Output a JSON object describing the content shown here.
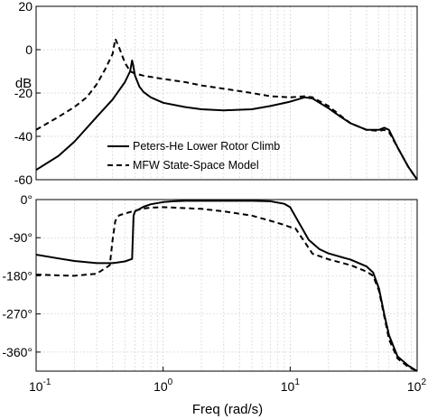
{
  "chart_data": [
    {
      "type": "line",
      "panel": "magnitude",
      "title": "",
      "xlabel": "",
      "ylabel": "dB",
      "xscale": "log",
      "xlim": [
        0.1,
        100
      ],
      "ylim": [
        -60,
        20
      ],
      "yticks": [
        20,
        0,
        -20,
        -40,
        -60
      ],
      "ytick_labels": [
        "20",
        "0",
        "-20",
        "-40",
        "-60"
      ],
      "grid": true,
      "legend": {
        "placement": "center-bottom"
      },
      "series": [
        {
          "name": "Peters-He Lower Rotor Climb",
          "style": "solid",
          "points": [
            [
              0.1,
              -55.5
            ],
            [
              0.15,
              -49
            ],
            [
              0.2,
              -42.5
            ],
            [
              0.3,
              -31
            ],
            [
              0.4,
              -23
            ],
            [
              0.5,
              -15
            ],
            [
              0.55,
              -10
            ],
            [
              0.57,
              -5
            ],
            [
              0.58,
              -7
            ],
            [
              0.6,
              -12
            ],
            [
              0.65,
              -17
            ],
            [
              0.7,
              -19.5
            ],
            [
              0.8,
              -22
            ],
            [
              1,
              -24.5
            ],
            [
              1.5,
              -26.5
            ],
            [
              2,
              -27.5
            ],
            [
              3,
              -28
            ],
            [
              5,
              -27.5
            ],
            [
              7,
              -26
            ],
            [
              10,
              -24
            ],
            [
              13,
              -22
            ],
            [
              15,
              -22.5
            ],
            [
              20,
              -27
            ],
            [
              25,
              -31
            ],
            [
              30,
              -34
            ],
            [
              40,
              -37
            ],
            [
              50,
              -37
            ],
            [
              55,
              -36
            ],
            [
              60,
              -37
            ],
            [
              70,
              -45
            ],
            [
              85,
              -54
            ],
            [
              100,
              -60
            ]
          ]
        },
        {
          "name": "MFW State-Space Model",
          "style": "dashed",
          "points": [
            [
              0.1,
              -37
            ],
            [
              0.15,
              -31
            ],
            [
              0.2,
              -26.5
            ],
            [
              0.25,
              -22
            ],
            [
              0.3,
              -16
            ],
            [
              0.35,
              -9
            ],
            [
              0.4,
              -2
            ],
            [
              0.42,
              5
            ],
            [
              0.45,
              1
            ],
            [
              0.5,
              -6
            ],
            [
              0.55,
              -10
            ],
            [
              0.6,
              -11
            ],
            [
              0.7,
              -12
            ],
            [
              1,
              -13.5
            ],
            [
              1.5,
              -15
            ],
            [
              2,
              -16.5
            ],
            [
              3,
              -18
            ],
            [
              5,
              -20
            ],
            [
              7,
              -21.5
            ],
            [
              10,
              -22
            ],
            [
              13,
              -21.5
            ],
            [
              15,
              -22
            ],
            [
              20,
              -26
            ],
            [
              25,
              -30.5
            ],
            [
              30,
              -34
            ],
            [
              40,
              -37
            ],
            [
              50,
              -37.5
            ],
            [
              55,
              -37
            ],
            [
              60,
              -38
            ],
            [
              70,
              -45
            ],
            [
              85,
              -54
            ],
            [
              100,
              -60
            ]
          ]
        }
      ]
    },
    {
      "type": "line",
      "panel": "phase",
      "title": "",
      "xlabel": "Freq (rad/s)",
      "ylabel": "",
      "xscale": "log",
      "xlim": [
        0.1,
        100
      ],
      "ylim": [
        -405,
        0
      ],
      "yticks": [
        0,
        -90,
        -180,
        -270,
        -360
      ],
      "ytick_labels": [
        "0°",
        "-90°",
        "-180°",
        "-270°",
        "-360°"
      ],
      "xticks": [
        0.1,
        1,
        10,
        100
      ],
      "xtick_labels": [
        {
          "base": "10",
          "exp": "-1"
        },
        {
          "base": "10",
          "exp": "0"
        },
        {
          "base": "10",
          "exp": "1"
        },
        {
          "base": "10",
          "exp": "2"
        }
      ],
      "grid": true,
      "series": [
        {
          "name": "Peters-He Lower Rotor Climb",
          "style": "solid",
          "points": [
            [
              0.1,
              -130
            ],
            [
              0.15,
              -139
            ],
            [
              0.2,
              -145
            ],
            [
              0.3,
              -150
            ],
            [
              0.4,
              -150
            ],
            [
              0.5,
              -146
            ],
            [
              0.57,
              -140
            ],
            [
              0.585,
              -38
            ],
            [
              0.6,
              -28
            ],
            [
              0.7,
              -17
            ],
            [
              0.8,
              -11
            ],
            [
              1,
              -6
            ],
            [
              1.2,
              -4
            ],
            [
              1.5,
              -3
            ],
            [
              2,
              -3
            ],
            [
              3,
              -3
            ],
            [
              5,
              -3
            ],
            [
              7,
              -4
            ],
            [
              9,
              -10
            ],
            [
              10,
              -18
            ],
            [
              12,
              -60
            ],
            [
              14,
              -95
            ],
            [
              17,
              -117
            ],
            [
              20,
              -127
            ],
            [
              30,
              -142
            ],
            [
              40,
              -158
            ],
            [
              45,
              -172
            ],
            [
              50,
              -210
            ],
            [
              55,
              -270
            ],
            [
              60,
              -320
            ],
            [
              70,
              -370
            ],
            [
              85,
              -392
            ],
            [
              100,
              -405
            ]
          ]
        },
        {
          "name": "MFW State-Space Model",
          "style": "dashed",
          "points": [
            [
              0.1,
              -177
            ],
            [
              0.15,
              -179
            ],
            [
              0.2,
              -180
            ],
            [
              0.3,
              -175
            ],
            [
              0.38,
              -155
            ],
            [
              0.4,
              -95
            ],
            [
              0.42,
              -50
            ],
            [
              0.45,
              -37
            ],
            [
              0.5,
              -33
            ],
            [
              0.6,
              -26
            ],
            [
              0.7,
              -21
            ],
            [
              0.8,
              -19
            ],
            [
              1,
              -18
            ],
            [
              2,
              -22
            ],
            [
              3,
              -28
            ],
            [
              5,
              -38
            ],
            [
              7,
              -50
            ],
            [
              9,
              -60
            ],
            [
              10,
              -65
            ],
            [
              11,
              -68
            ],
            [
              13,
              -100
            ],
            [
              15,
              -128
            ],
            [
              20,
              -141
            ],
            [
              30,
              -155
            ],
            [
              40,
              -170
            ],
            [
              45,
              -180
            ],
            [
              50,
              -215
            ],
            [
              55,
              -275
            ],
            [
              60,
              -330
            ],
            [
              70,
              -375
            ],
            [
              85,
              -395
            ],
            [
              100,
              -405
            ]
          ]
        }
      ]
    }
  ]
}
